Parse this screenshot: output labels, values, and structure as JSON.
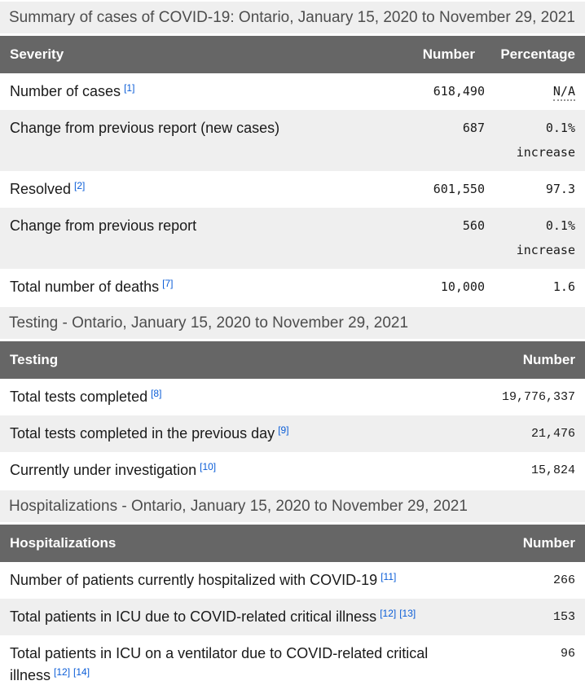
{
  "colors": {
    "header_bg": "#666666",
    "header_text": "#ffffff",
    "stripe_bg": "#efefef",
    "heading_bg": "#efefef",
    "heading_text": "#4d4d4d",
    "body_text": "#1a1a1a",
    "link_blue": "#0b5dd7"
  },
  "tables": [
    {
      "heading": "Summary of cases of COVID-19: Ontario, January 15, 2020 to November 29, 2021",
      "columns": [
        "Severity",
        "Number",
        "Percentage"
      ],
      "rows": [
        {
          "label": "Number of cases",
          "footnotes": [
            "[1]"
          ],
          "number": "618,490",
          "percentage": "N/A"
        },
        {
          "label": "Change from previous report (new cases)",
          "footnotes": [],
          "number": "687",
          "percentage": "0.1%",
          "note": "increase"
        },
        {
          "label": "Resolved",
          "footnotes": [
            "[2]"
          ],
          "number": "601,550",
          "percentage": "97.3"
        },
        {
          "label": "Change from previous report",
          "footnotes": [],
          "number": "560",
          "percentage": "0.1%",
          "note": "increase"
        },
        {
          "label": "Total number of deaths",
          "footnotes": [
            "[7]"
          ],
          "number": "10,000",
          "percentage": "1.6"
        }
      ]
    },
    {
      "heading": "Testing - Ontario, January 15, 2020 to November 29, 2021",
      "columns": [
        "Testing",
        "Number"
      ],
      "rows": [
        {
          "label": "Total tests completed",
          "footnotes": [
            "[8]"
          ],
          "number": "19,776,337"
        },
        {
          "label": "Total tests completed in the previous day",
          "footnotes": [
            "[9]"
          ],
          "number": "21,476"
        },
        {
          "label": "Currently under investigation",
          "footnotes": [
            "[10]"
          ],
          "number": "15,824"
        }
      ]
    },
    {
      "heading": "Hospitalizations - Ontario, January 15, 2020 to November 29, 2021",
      "columns": [
        "Hospitalizations",
        "Number"
      ],
      "rows": [
        {
          "label": "Number of patients currently hospitalized with COVID-19",
          "footnotes": [
            "[11]"
          ],
          "number": "266"
        },
        {
          "label": "Total patients in ICU due to COVID-related critical illness",
          "footnotes": [
            "[12]",
            "[13]"
          ],
          "number": "153"
        },
        {
          "label": "Total patients in ICU on a ventilator due to COVID-related critical illness",
          "footnotes": [
            "[12]",
            "[14]"
          ],
          "number": "96"
        }
      ]
    }
  ]
}
